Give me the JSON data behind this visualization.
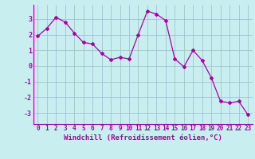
{
  "x": [
    0,
    1,
    2,
    3,
    4,
    5,
    6,
    7,
    8,
    9,
    10,
    11,
    12,
    13,
    14,
    15,
    16,
    17,
    18,
    19,
    20,
    21,
    22,
    23
  ],
  "y": [
    1.9,
    2.4,
    3.1,
    2.8,
    2.1,
    1.5,
    1.4,
    0.8,
    0.4,
    0.55,
    0.45,
    2.0,
    3.5,
    3.3,
    2.9,
    0.45,
    -0.05,
    1.0,
    0.35,
    -0.75,
    -2.25,
    -2.35,
    -2.25,
    -3.1
  ],
  "line_color": "#aa00aa",
  "marker": "D",
  "markersize": 2.0,
  "linewidth": 0.9,
  "xlabel": "Windchill (Refroidissement éolien,°C)",
  "xlabel_fontsize": 6.5,
  "tick_color": "#aa00aa",
  "ylabel_ticks": [
    -3,
    -2,
    -1,
    0,
    1,
    2,
    3
  ],
  "xtick_labels": [
    "0",
    "1",
    "2",
    "3",
    "4",
    "5",
    "6",
    "7",
    "8",
    "9",
    "10",
    "11",
    "12",
    "13",
    "14",
    "15",
    "16",
    "17",
    "18",
    "19",
    "20",
    "21",
    "22",
    "23"
  ],
  "ylim": [
    -3.7,
    3.9
  ],
  "xlim": [
    -0.5,
    23.5
  ],
  "bg_color": "#c8eef0",
  "grid_color": "#99bbcc",
  "tick_fontsize": 5.5,
  "axis_line_color": "#aa00aa"
}
